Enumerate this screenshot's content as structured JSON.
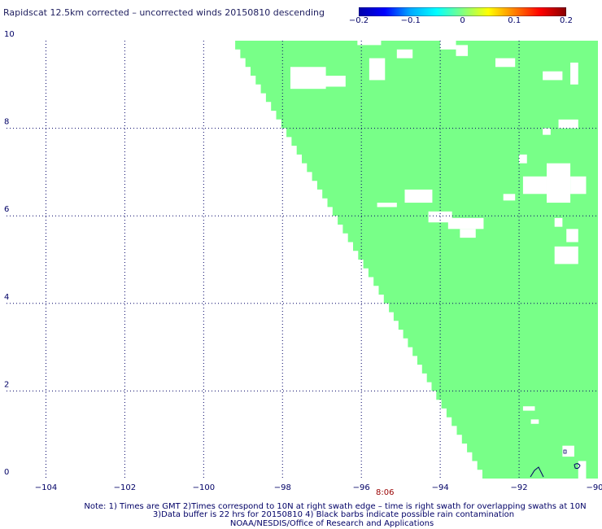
{
  "title": "Rapidscat 12.5km corrected – uncorrected winds 20150810 descending",
  "colorbar": {
    "ticks": [
      {
        "label": "−0.2",
        "value": -0.2
      },
      {
        "label": "−0.1",
        "value": -0.1
      },
      {
        "label": "0",
        "value": 0
      },
      {
        "label": "0.1",
        "value": 0.1
      },
      {
        "label": "0.2",
        "value": 0.2
      }
    ],
    "range": [
      -0.2,
      0.2
    ],
    "colors": [
      "#0000aa",
      "#0000ff",
      "#00aaff",
      "#00ffff",
      "#80ff80",
      "#ffff00",
      "#ff8000",
      "#ff0000",
      "#880000"
    ]
  },
  "chart_data": {
    "type": "heatmap",
    "title": "Rapidscat 12.5km corrected – uncorrected winds 20150810 descending",
    "xlim": [
      -105,
      -90
    ],
    "ylim": [
      0,
      10
    ],
    "x_ticks": [
      {
        "label": "−104",
        "value": -104
      },
      {
        "label": "−102",
        "value": -102
      },
      {
        "label": "−100",
        "value": -100
      },
      {
        "label": "−98",
        "value": -98
      },
      {
        "label": "−96",
        "value": -96
      },
      {
        "label": "−94",
        "value": -94
      },
      {
        "label": "−92",
        "value": -92
      },
      {
        "label": "−90",
        "value": -90
      }
    ],
    "y_ticks": [
      {
        "label": "0",
        "value": 0
      },
      {
        "label": "2",
        "value": 2
      },
      {
        "label": "4",
        "value": 4
      },
      {
        "label": "6",
        "value": 6
      },
      {
        "label": "8",
        "value": 8
      },
      {
        "label": "10",
        "value": 10
      }
    ],
    "grid": true,
    "fill_color": "#78ff88",
    "fill_value": 0,
    "swath_edge": [
      {
        "lat": 10.0,
        "lon": -99.2
      },
      {
        "lat": 8.0,
        "lon": -97.9
      },
      {
        "lat": 6.0,
        "lon": -96.6
      },
      {
        "lat": 4.0,
        "lon": -95.3
      },
      {
        "lat": 2.0,
        "lon": -94.1
      },
      {
        "lat": 0.0,
        "lon": -92.8
      }
    ],
    "time_label": {
      "text": "8:06",
      "lon": -95.4
    },
    "missing_patches": [
      {
        "lon": [
          -97.8,
          -96.9
        ],
        "lat": [
          8.9,
          9.4
        ]
      },
      {
        "lon": [
          -97.0,
          -96.4
        ],
        "lat": [
          8.95,
          9.2
        ]
      },
      {
        "lon": [
          -95.8,
          -95.4
        ],
        "lat": [
          9.1,
          9.6
        ]
      },
      {
        "lon": [
          -95.1,
          -94.7
        ],
        "lat": [
          9.6,
          9.8
        ]
      },
      {
        "lon": [
          -96.1,
          -95.5
        ],
        "lat": [
          9.9,
          10.0
        ]
      },
      {
        "lon": [
          -94.0,
          -93.6
        ],
        "lat": [
          9.8,
          10.0
        ]
      },
      {
        "lon": [
          -93.6,
          -93.3
        ],
        "lat": [
          9.65,
          9.9
        ]
      },
      {
        "lon": [
          -92.6,
          -92.1
        ],
        "lat": [
          9.4,
          9.6
        ]
      },
      {
        "lon": [
          -91.4,
          -90.9
        ],
        "lat": [
          9.1,
          9.3
        ]
      },
      {
        "lon": [
          -90.7,
          -90.5
        ],
        "lat": [
          9.0,
          9.5
        ]
      },
      {
        "lon": [
          -91.0,
          -90.5
        ],
        "lat": [
          8.0,
          8.2
        ]
      },
      {
        "lon": [
          -91.4,
          -91.2
        ],
        "lat": [
          7.85,
          8.0
        ]
      },
      {
        "lon": [
          -92.0,
          -91.8
        ],
        "lat": [
          7.2,
          7.4
        ]
      },
      {
        "lon": [
          -91.9,
          -91.3
        ],
        "lat": [
          6.5,
          6.9
        ]
      },
      {
        "lon": [
          -91.3,
          -90.7
        ],
        "lat": [
          6.3,
          7.2
        ]
      },
      {
        "lon": [
          -90.7,
          -90.3
        ],
        "lat": [
          6.5,
          6.9
        ]
      },
      {
        "lon": [
          -94.9,
          -94.2
        ],
        "lat": [
          6.3,
          6.6
        ]
      },
      {
        "lon": [
          -95.6,
          -95.1
        ],
        "lat": [
          6.2,
          6.3
        ]
      },
      {
        "lon": [
          -94.3,
          -93.7
        ],
        "lat": [
          5.85,
          6.1
        ]
      },
      {
        "lon": [
          -93.8,
          -92.9
        ],
        "lat": [
          5.7,
          5.95
        ]
      },
      {
        "lon": [
          -93.5,
          -93.1
        ],
        "lat": [
          5.5,
          5.7
        ]
      },
      {
        "lon": [
          -92.4,
          -92.1
        ],
        "lat": [
          6.35,
          6.5
        ]
      },
      {
        "lon": [
          -91.1,
          -90.9
        ],
        "lat": [
          5.75,
          5.95
        ]
      },
      {
        "lon": [
          -90.8,
          -90.5
        ],
        "lat": [
          5.4,
          5.7
        ]
      },
      {
        "lon": [
          -91.1,
          -90.5
        ],
        "lat": [
          4.9,
          5.3
        ]
      },
      {
        "lon": [
          -91.9,
          -91.6
        ],
        "lat": [
          1.55,
          1.65
        ]
      },
      {
        "lon": [
          -91.7,
          -91.5
        ],
        "lat": [
          1.25,
          1.35
        ]
      },
      {
        "lon": [
          -90.9,
          -90.6
        ],
        "lat": [
          0.5,
          0.75
        ]
      },
      {
        "lon": [
          -90.5,
          -90.3
        ],
        "lat": [
          0.0,
          0.4
        ]
      }
    ]
  },
  "notes": {
    "line1": "Note: 1) Times are GMT 2)Times correspond to 10N at right swath edge – time is right swath for overlapping swaths at 10N",
    "line2": "3)Data buffer is 22 hrs for 20150810 4) Black barbs indicate possible rain contamination",
    "line3": "NOAA/NESDIS/Office of Research and Applications"
  }
}
